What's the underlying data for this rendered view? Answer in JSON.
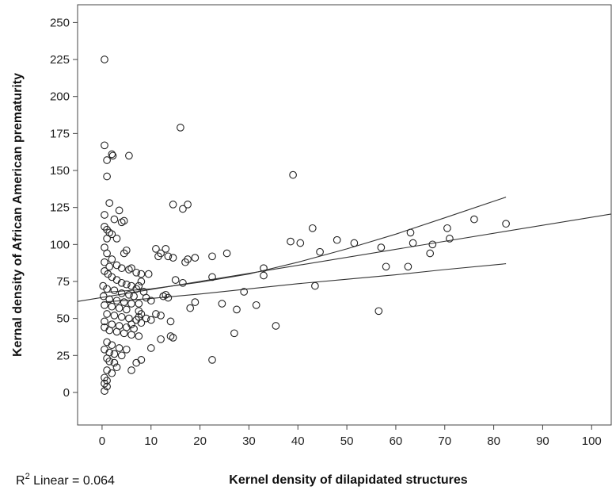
{
  "chart_data": {
    "type": "scatter",
    "xlabel": "Kernel density of dilapidated structures",
    "ylabel": "Kernal density of African American prematurity",
    "xlim": [
      -5,
      104
    ],
    "ylim": [
      -22,
      262
    ],
    "x_ticks": [
      0,
      10,
      20,
      30,
      40,
      50,
      60,
      70,
      80,
      90,
      100
    ],
    "y_ticks": [
      0,
      25,
      50,
      75,
      100,
      125,
      150,
      175,
      200,
      225,
      250
    ],
    "annotation": {
      "prefix": "R",
      "sup": "2",
      "text": " Linear = 0.064"
    },
    "fit_line": {
      "intercept": 64.2,
      "slope": 0.542,
      "x_range": [
        -5,
        104
      ]
    },
    "confidence_band": {
      "upper": [
        [
          0,
          67.5
        ],
        [
          10,
          70.0
        ],
        [
          20,
          74.5
        ],
        [
          30,
          80.0
        ],
        [
          40,
          88.0
        ],
        [
          50,
          97.0
        ],
        [
          60,
          107.0
        ],
        [
          70,
          118.0
        ],
        [
          82.5,
          132.0
        ]
      ],
      "lower": [
        [
          0,
          61.0
        ],
        [
          10,
          63.5
        ],
        [
          20,
          66.5
        ],
        [
          30,
          70.0
        ],
        [
          40,
          73.5
        ],
        [
          50,
          76.5
        ],
        [
          60,
          79.5
        ],
        [
          70,
          83.0
        ],
        [
          82.5,
          87.0
        ]
      ]
    },
    "grid": false,
    "points": [
      [
        0.5,
        225
      ],
      [
        0.5,
        167
      ],
      [
        1.0,
        157
      ],
      [
        2.0,
        161
      ],
      [
        2.2,
        160
      ],
      [
        1.0,
        146
      ],
      [
        5.5,
        160
      ],
      [
        0.5,
        120
      ],
      [
        1.5,
        128
      ],
      [
        2.5,
        117
      ],
      [
        3.5,
        123
      ],
      [
        0.5,
        112
      ],
      [
        1.0,
        110
      ],
      [
        1.5,
        108
      ],
      [
        2.0,
        107
      ],
      [
        4.0,
        115
      ],
      [
        4.5,
        116
      ],
      [
        1.0,
        104
      ],
      [
        3.0,
        104
      ],
      [
        0.5,
        98
      ],
      [
        1.0,
        94
      ],
      [
        2.0,
        90
      ],
      [
        4.5,
        94
      ],
      [
        5.0,
        96
      ],
      [
        0.5,
        88
      ],
      [
        1.5,
        85
      ],
      [
        3.0,
        86
      ],
      [
        4.0,
        84
      ],
      [
        5.5,
        83
      ],
      [
        0.5,
        82
      ],
      [
        1.2,
        80
      ],
      [
        2.0,
        78
      ],
      [
        3.0,
        76
      ],
      [
        4.0,
        74
      ],
      [
        5.0,
        73
      ],
      [
        6.0,
        72
      ],
      [
        7.0,
        70
      ],
      [
        8.0,
        75
      ],
      [
        0.2,
        72
      ],
      [
        1.0,
        70
      ],
      [
        2.5,
        69
      ],
      [
        4.0,
        67
      ],
      [
        5.5,
        66
      ],
      [
        6.5,
        65
      ],
      [
        0.3,
        65
      ],
      [
        1.5,
        63
      ],
      [
        3.0,
        62
      ],
      [
        4.5,
        61
      ],
      [
        6.0,
        60
      ],
      [
        0.5,
        59
      ],
      [
        2.0,
        58
      ],
      [
        3.5,
        57
      ],
      [
        5.0,
        56
      ],
      [
        7.5,
        55
      ],
      [
        1.0,
        53
      ],
      [
        2.5,
        52
      ],
      [
        4.0,
        51
      ],
      [
        5.5,
        50
      ],
      [
        7.0,
        49
      ],
      [
        0.5,
        48
      ],
      [
        2.0,
        46
      ],
      [
        3.5,
        45
      ],
      [
        5.0,
        44
      ],
      [
        6.5,
        43
      ],
      [
        1.5,
        42
      ],
      [
        3.0,
        41
      ],
      [
        4.5,
        40
      ],
      [
        6.0,
        39
      ],
      [
        7.5,
        38
      ],
      [
        0.5,
        44
      ],
      [
        1.0,
        34
      ],
      [
        2.0,
        32
      ],
      [
        3.5,
        30
      ],
      [
        5.0,
        29
      ],
      [
        1.5,
        27
      ],
      [
        2.5,
        26
      ],
      [
        4.0,
        25
      ],
      [
        0.5,
        29
      ],
      [
        1.0,
        23
      ],
      [
        1.5,
        21
      ],
      [
        2.5,
        20
      ],
      [
        3.0,
        17
      ],
      [
        1.0,
        15
      ],
      [
        2.0,
        13
      ],
      [
        0.5,
        10
      ],
      [
        1.0,
        8
      ],
      [
        0.5,
        6
      ],
      [
        1.0,
        4
      ],
      [
        0.5,
        1
      ],
      [
        6.0,
        84
      ],
      [
        7.0,
        81
      ],
      [
        8.0,
        80
      ],
      [
        9.5,
        80
      ],
      [
        7.5,
        72
      ],
      [
        8.5,
        68
      ],
      [
        9.0,
        64
      ],
      [
        10.0,
        62
      ],
      [
        7.5,
        60
      ],
      [
        8.0,
        53
      ],
      [
        9.0,
        50
      ],
      [
        10.0,
        49
      ],
      [
        7.5,
        51
      ],
      [
        6.0,
        46
      ],
      [
        8.0,
        47
      ],
      [
        7.0,
        20
      ],
      [
        8.0,
        22
      ],
      [
        10.0,
        30
      ],
      [
        6.0,
        15
      ],
      [
        11.0,
        97
      ],
      [
        11.5,
        92
      ],
      [
        13.0,
        97
      ],
      [
        13.5,
        92
      ],
      [
        14.5,
        91
      ],
      [
        15.0,
        76
      ],
      [
        12.0,
        94
      ],
      [
        12.5,
        65
      ],
      [
        13.0,
        66
      ],
      [
        13.5,
        64
      ],
      [
        12.0,
        52
      ],
      [
        12.0,
        36
      ],
      [
        14.0,
        38
      ],
      [
        14.5,
        37
      ],
      [
        14.0,
        48
      ],
      [
        11.0,
        53
      ],
      [
        14.5,
        127
      ],
      [
        16.5,
        124
      ],
      [
        17.5,
        127
      ],
      [
        16.0,
        179
      ],
      [
        16.5,
        74
      ],
      [
        17.5,
        90
      ],
      [
        19.0,
        91
      ],
      [
        17.0,
        88
      ],
      [
        18.0,
        57
      ],
      [
        19.0,
        61
      ],
      [
        22.5,
        92
      ],
      [
        25.5,
        94
      ],
      [
        22.5,
        78
      ],
      [
        24.5,
        60
      ],
      [
        27.5,
        56
      ],
      [
        29.0,
        68
      ],
      [
        27.0,
        40
      ],
      [
        31.5,
        59
      ],
      [
        33.0,
        84
      ],
      [
        33.0,
        79
      ],
      [
        35.5,
        45
      ],
      [
        22.5,
        22
      ],
      [
        39.0,
        147
      ],
      [
        38.5,
        102
      ],
      [
        40.5,
        101
      ],
      [
        43.0,
        111
      ],
      [
        44.5,
        95
      ],
      [
        43.5,
        72
      ],
      [
        48.0,
        103
      ],
      [
        51.5,
        101
      ],
      [
        57.0,
        98
      ],
      [
        56.5,
        55
      ],
      [
        58.0,
        85
      ],
      [
        62.5,
        85
      ],
      [
        63.0,
        108
      ],
      [
        63.5,
        101
      ],
      [
        67.0,
        94
      ],
      [
        67.5,
        100
      ],
      [
        70.5,
        111
      ],
      [
        71.0,
        104
      ],
      [
        76.0,
        117
      ],
      [
        82.5,
        114
      ]
    ]
  }
}
